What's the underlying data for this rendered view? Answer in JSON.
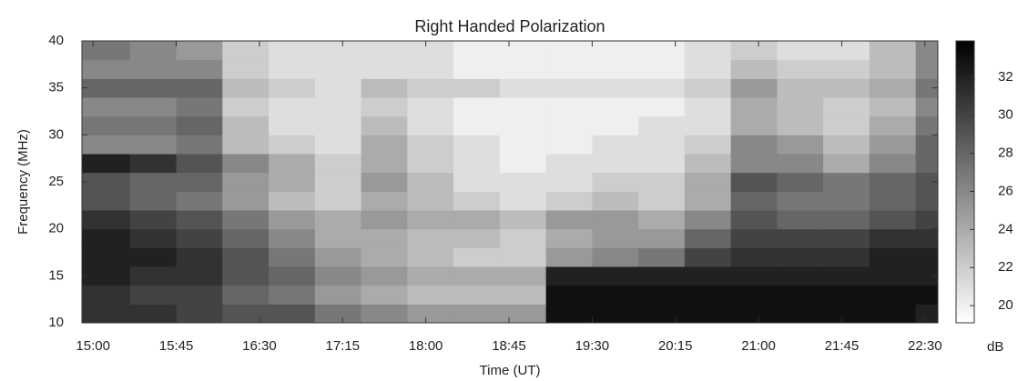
{
  "chart_data": {
    "type": "heatmap",
    "title": "Right Handed Polarization",
    "x_label": "Time (UT)",
    "y_label": "Frequency (MHz)",
    "x_edges": [
      894,
      920,
      945,
      970,
      995,
      1020,
      1045,
      1070,
      1095,
      1120,
      1145,
      1170,
      1195,
      1220,
      1245,
      1270,
      1295,
      1320,
      1345,
      1357
    ],
    "y_edges": [
      10,
      12,
      14,
      16,
      18,
      20,
      22,
      24,
      26,
      28,
      30,
      32,
      34,
      36,
      38,
      40
    ],
    "values": [
      [
        31,
        31,
        30,
        29,
        29,
        27,
        26,
        25,
        25,
        25,
        33,
        33,
        33,
        33,
        33,
        33,
        33,
        33,
        32
      ],
      [
        31,
        30,
        30,
        28,
        27,
        25,
        24,
        23,
        23,
        23,
        33,
        33,
        33,
        33,
        33,
        33,
        33,
        33,
        33
      ],
      [
        32,
        31,
        31,
        29,
        28,
        26,
        25,
        24,
        24,
        24,
        32,
        32,
        32,
        32,
        32,
        32,
        32,
        32,
        32
      ],
      [
        32,
        32,
        31,
        29,
        27,
        25,
        24,
        23,
        22,
        22,
        25,
        26,
        27,
        30,
        31,
        31,
        31,
        32,
        32
      ],
      [
        32,
        31,
        30,
        28,
        26,
        24,
        24,
        23,
        23,
        22,
        24,
        25,
        25,
        28,
        30,
        30,
        30,
        31,
        31
      ],
      [
        31,
        30,
        29,
        27,
        25,
        24,
        25,
        24,
        24,
        23,
        25,
        25,
        24,
        26,
        29,
        28,
        28,
        29,
        30
      ],
      [
        29,
        28,
        27,
        25,
        23,
        22,
        24,
        23,
        22,
        21,
        22,
        23,
        22,
        24,
        28,
        27,
        27,
        28,
        29
      ],
      [
        29,
        28,
        28,
        25,
        24,
        22,
        25,
        23,
        21,
        21,
        21,
        22,
        22,
        24,
        29,
        28,
        27,
        28,
        29
      ],
      [
        32,
        31,
        29,
        26,
        24,
        22,
        24,
        22,
        21,
        20,
        21,
        21,
        21,
        23,
        26,
        26,
        24,
        26,
        28
      ],
      [
        26,
        26,
        27,
        23,
        22,
        21,
        24,
        22,
        21,
        20,
        20,
        21,
        21,
        22,
        26,
        25,
        23,
        25,
        28
      ],
      [
        27,
        27,
        28,
        23,
        21,
        21,
        23,
        21,
        20,
        20,
        20,
        20,
        21,
        21,
        24,
        23,
        22,
        24,
        27
      ],
      [
        26,
        26,
        27,
        22,
        21,
        21,
        22,
        21,
        20,
        20,
        20,
        20,
        20,
        21,
        24,
        23,
        22,
        23,
        26
      ],
      [
        28,
        28,
        28,
        23,
        22,
        21,
        23,
        22,
        22,
        21,
        21,
        21,
        21,
        22,
        25,
        23,
        23,
        24,
        27
      ],
      [
        26,
        26,
        26,
        22,
        21,
        21,
        21,
        21,
        20,
        20,
        20,
        20,
        20,
        21,
        23,
        22,
        22,
        23,
        26
      ],
      [
        27,
        26,
        25,
        22,
        21,
        21,
        21,
        21,
        20,
        20,
        20,
        20,
        20,
        21,
        22,
        21,
        21,
        23,
        26
      ]
    ],
    "xlim": [
      894,
      1357
    ],
    "ylim": [
      10,
      40
    ],
    "xticks": [
      {
        "value": 900,
        "label": "15:00"
      },
      {
        "value": 945,
        "label": "15:45"
      },
      {
        "value": 990,
        "label": "16:30"
      },
      {
        "value": 1035,
        "label": "17:15"
      },
      {
        "value": 1080,
        "label": "18:00"
      },
      {
        "value": 1125,
        "label": "18:45"
      },
      {
        "value": 1170,
        "label": "19:30"
      },
      {
        "value": 1215,
        "label": "20:15"
      },
      {
        "value": 1260,
        "label": "21:00"
      },
      {
        "value": 1305,
        "label": "21:45"
      },
      {
        "value": 1350,
        "label": "22:30"
      }
    ],
    "yticks": [
      10,
      15,
      20,
      25,
      30,
      35,
      40
    ],
    "colorbar": {
      "label": "dB",
      "lim": [
        19.1,
        33.9
      ],
      "ticks": [
        20,
        22,
        24,
        26,
        28,
        30,
        32
      ],
      "colors": [
        "#ffffff",
        "#000000"
      ]
    }
  }
}
